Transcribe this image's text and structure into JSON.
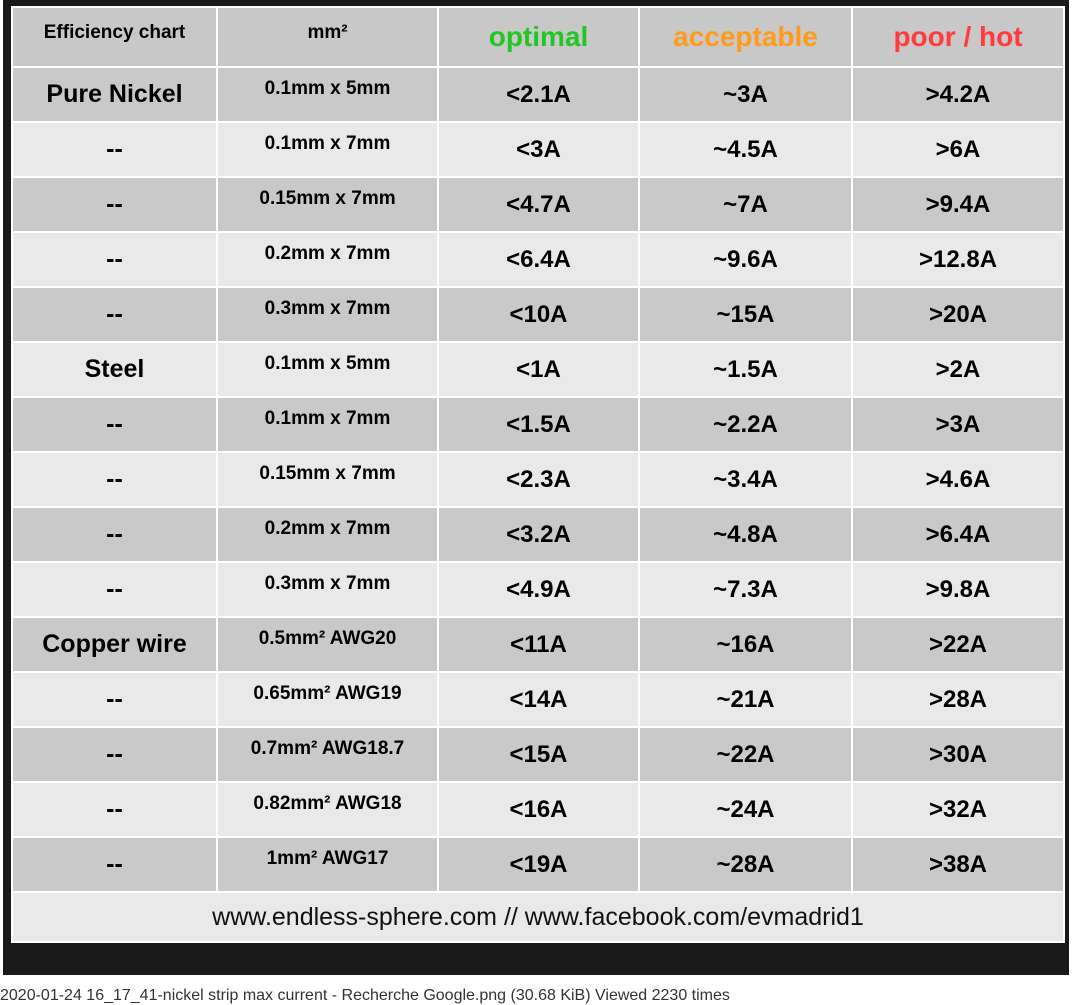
{
  "table": {
    "header": [
      "Efficiency chart",
      "mm²",
      "optimal",
      "acceptable",
      "poor / hot"
    ],
    "rows": [
      [
        "Pure Nickel",
        "0.1mm x 5mm",
        "<2.1A",
        "~3A",
        ">4.2A"
      ],
      [
        "--",
        "0.1mm x 7mm",
        "<3A",
        "~4.5A",
        ">6A"
      ],
      [
        "--",
        "0.15mm x 7mm",
        "<4.7A",
        "~7A",
        ">9.4A"
      ],
      [
        "--",
        "0.2mm x 7mm",
        "<6.4A",
        "~9.6A",
        ">12.8A"
      ],
      [
        "--",
        "0.3mm x 7mm",
        "<10A",
        "~15A",
        ">20A"
      ],
      [
        "Steel",
        "0.1mm x 5mm",
        "<1A",
        "~1.5A",
        ">2A"
      ],
      [
        "--",
        "0.1mm x 7mm",
        "<1.5A",
        "~2.2A",
        ">3A"
      ],
      [
        "--",
        "0.15mm x 7mm",
        "<2.3A",
        "~3.4A",
        ">4.6A"
      ],
      [
        "--",
        "0.2mm x 7mm",
        "<3.2A",
        "~4.8A",
        ">6.4A"
      ],
      [
        "--",
        "0.3mm x 7mm",
        "<4.9A",
        "~7.3A",
        ">9.8A"
      ],
      [
        "Copper wire",
        "0.5mm² AWG20",
        "<11A",
        "~16A",
        ">22A"
      ],
      [
        "--",
        "0.65mm² AWG19",
        "<14A",
        "~21A",
        ">28A"
      ],
      [
        "--",
        "0.7mm² AWG18.7",
        "<15A",
        "~22A",
        ">30A"
      ],
      [
        "--",
        "0.82mm² AWG18",
        "<16A",
        "~24A",
        ">32A"
      ],
      [
        "--",
        "1mm² AWG17",
        "<19A",
        "~28A",
        ">38A"
      ]
    ],
    "footer": "www.endless-sphere.com  //  www.facebook.com/evmadrid1"
  },
  "caption": "2020-01-24 16_17_41-nickel strip max current - Recherche Google.png (30.68 KiB) Viewed 2230 times"
}
